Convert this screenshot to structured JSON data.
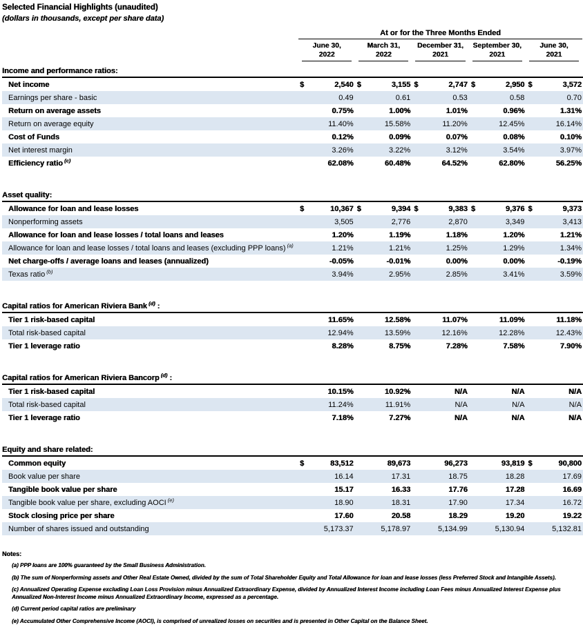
{
  "colors": {
    "stripe": "#dce6f1",
    "rule": "#000000"
  },
  "header": {
    "title": "Selected Financial Highlights (unaudited)",
    "subtitle": "(dollars in thousands, except per share data)"
  },
  "table": {
    "period_header": "At or for the Three Months Ended",
    "columns": [
      {
        "month": "June 30,",
        "year": "2022"
      },
      {
        "month": "March 31,",
        "year": "2022"
      },
      {
        "month": "December 31,",
        "year": "2021"
      },
      {
        "month": "September 30,",
        "year": "2021"
      },
      {
        "month": "June 30,",
        "year": "2021"
      }
    ],
    "sections": [
      {
        "heading": "Income and performance ratios:",
        "sup": "",
        "suffix": "",
        "rows": [
          {
            "label": "Net income",
            "sup": "",
            "dollar_cols": [
              0,
              1,
              2,
              3,
              4
            ],
            "values": [
              "2,540",
              "3,155",
              "2,747",
              "2,950",
              "3,572"
            ]
          },
          {
            "label": "Earnings per share - basic",
            "sup": "",
            "dollar_cols": [],
            "values": [
              "0.49",
              "0.61",
              "0.53",
              "0.58",
              "0.70"
            ]
          },
          {
            "label": "Return on average assets",
            "sup": "",
            "dollar_cols": [],
            "values": [
              "0.75%",
              "1.00%",
              "1.01%",
              "0.96%",
              "1.31%"
            ]
          },
          {
            "label": "Return on average equity",
            "sup": "",
            "dollar_cols": [],
            "values": [
              "11.40%",
              "15.58%",
              "11.20%",
              "12.45%",
              "16.14%"
            ]
          },
          {
            "label": "Cost of Funds",
            "sup": "",
            "dollar_cols": [],
            "values": [
              "0.12%",
              "0.09%",
              "0.07%",
              "0.08%",
              "0.10%"
            ]
          },
          {
            "label": "Net interest margin",
            "sup": "",
            "dollar_cols": [],
            "values": [
              "3.26%",
              "3.22%",
              "3.12%",
              "3.54%",
              "3.97%"
            ]
          },
          {
            "label": "Efficiency ratio",
            "sup": "(c)",
            "dollar_cols": [],
            "values": [
              "62.08%",
              "60.48%",
              "64.52%",
              "62.80%",
              "56.25%"
            ]
          }
        ]
      },
      {
        "heading": "Asset quality:",
        "sup": "",
        "suffix": "",
        "rows": [
          {
            "label": "Allowance for loan and lease losses",
            "sup": "",
            "dollar_cols": [
              0,
              1,
              2,
              3,
              4
            ],
            "values": [
              "10,367",
              "9,394",
              "9,383",
              "9,376",
              "9,373"
            ]
          },
          {
            "label": "Nonperforming assets",
            "sup": "",
            "dollar_cols": [],
            "values": [
              "3,505",
              "2,776",
              "2,870",
              "3,349",
              "3,413"
            ]
          },
          {
            "label": "Allowance for loan and lease losses / total loans and leases",
            "sup": "",
            "dollar_cols": [],
            "values": [
              "1.20%",
              "1.19%",
              "1.18%",
              "1.20%",
              "1.21%"
            ]
          },
          {
            "label": "Allowance for loan and lease losses / total loans and leases (excluding PPP loans)",
            "sup": "(a)",
            "dollar_cols": [],
            "values": [
              "1.21%",
              "1.21%",
              "1.25%",
              "1.29%",
              "1.34%"
            ]
          },
          {
            "label": "Net charge-offs / average loans and leases (annualized)",
            "sup": "",
            "dollar_cols": [],
            "values": [
              "-0.05%",
              "-0.01%",
              "0.00%",
              "0.00%",
              "-0.19%"
            ]
          },
          {
            "label": "Texas ratio",
            "sup": "(b)",
            "dollar_cols": [],
            "values": [
              "3.94%",
              "2.95%",
              "2.85%",
              "3.41%",
              "3.59%"
            ]
          }
        ]
      },
      {
        "heading": "Capital ratios for American Riviera Bank",
        "sup": "(d)",
        "suffix": ":",
        "rows": [
          {
            "label": "Tier 1 risk-based capital",
            "sup": "",
            "dollar_cols": [],
            "values": [
              "11.65%",
              "12.58%",
              "11.07%",
              "11.09%",
              "11.18%"
            ]
          },
          {
            "label": "Total risk-based capital",
            "sup": "",
            "dollar_cols": [],
            "values": [
              "12.94%",
              "13.59%",
              "12.16%",
              "12.28%",
              "12.43%"
            ]
          },
          {
            "label": "Tier 1 leverage ratio",
            "sup": "",
            "dollar_cols": [],
            "values": [
              "8.28%",
              "8.75%",
              "7.28%",
              "7.58%",
              "7.90%"
            ]
          }
        ]
      },
      {
        "heading": "Capital ratios for American Riviera Bancorp",
        "sup": "(d)",
        "suffix": ":",
        "rows": [
          {
            "label": "Tier 1 risk-based capital",
            "sup": "",
            "dollar_cols": [],
            "values": [
              "10.15%",
              "10.92%",
              "N/A",
              "N/A",
              "N/A"
            ]
          },
          {
            "label": "Total risk-based capital",
            "sup": "",
            "dollar_cols": [],
            "values": [
              "11.24%",
              "11.91%",
              "N/A",
              "N/A",
              "N/A"
            ]
          },
          {
            "label": "Tier 1 leverage ratio",
            "sup": "",
            "dollar_cols": [],
            "values": [
              "7.18%",
              "7.27%",
              "N/A",
              "N/A",
              "N/A"
            ]
          }
        ]
      },
      {
        "heading": "Equity and share related:",
        "sup": "",
        "suffix": "",
        "rows": [
          {
            "label": "Common equity",
            "sup": "",
            "dollar_cols": [
              0,
              4
            ],
            "values": [
              "83,512",
              "89,673",
              "96,273",
              "93,819",
              "90,800"
            ]
          },
          {
            "label": "Book value per share",
            "sup": "",
            "dollar_cols": [],
            "values": [
              "16.14",
              "17.31",
              "18.75",
              "18.28",
              "17.69"
            ]
          },
          {
            "label": "Tangible book value per share",
            "sup": "",
            "dollar_cols": [],
            "values": [
              "15.17",
              "16.33",
              "17.76",
              "17.28",
              "16.69"
            ]
          },
          {
            "label": "Tangible book value per share, excluding AOCI",
            "sup": "(e)",
            "dollar_cols": [],
            "values": [
              "18.90",
              "18.31",
              "17.90",
              "17.34",
              "16.72"
            ]
          },
          {
            "label": "Stock closing price per share",
            "sup": "",
            "dollar_cols": [],
            "values": [
              "17.60",
              "20.58",
              "18.29",
              "19.20",
              "19.22"
            ]
          },
          {
            "label": "Number of shares issued and outstanding",
            "sup": "",
            "dollar_cols": [],
            "values": [
              "5,173.37",
              "5,178.97",
              "5,134.99",
              "5,130.94",
              "5,132.81"
            ]
          }
        ]
      }
    ]
  },
  "notes": {
    "heading": "Notes:",
    "items": [
      "(a) PPP loans are 100% guaranteed by the Small Business Administration.",
      "(b) The sum of Nonperforming assets and Other Real Estate Owned, divided by the sum of Total Shareholder Equity and Total Allowance for loan and lease losses (less Preferred Stock and Intangible Assets).",
      "(c) Annualized Operating Expense excluding Loan Loss Provision minus Annualized Extraordinary Expense, divided by Annualized Interest Income including Loan Fees minus Annualized Interest Expense plus Annualized Non-Interest Income minus Annualized Extraordinary Income, expressed as a percentage.",
      "(d) Current period capital ratios are preliminary",
      "(e) Accumulated Other Comprehensive Income (AOCI), is comprised of unrealized losses on securities and is presented in Other Capital on the Balance Sheet."
    ]
  }
}
